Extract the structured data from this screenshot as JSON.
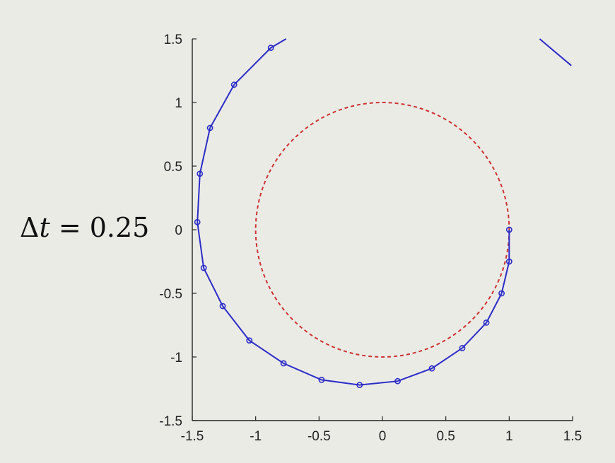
{
  "label": {
    "delta": "Δ",
    "variable": "t",
    "rest": " = 0.25"
  },
  "colors": {
    "background": "#ebebe6",
    "axis": "#222222",
    "trajectory": "#2b2bc8",
    "reference_circle": "#cc3333"
  },
  "chart_data": {
    "type": "line",
    "title": "",
    "xlabel": "",
    "ylabel": "",
    "xlim": [
      -1.5,
      1.5
    ],
    "ylim": [
      -1.5,
      1.5
    ],
    "x_ticks": [
      "-1.5",
      "-1",
      "-0.5",
      "0",
      "0.5",
      "1",
      "1.5"
    ],
    "y_ticks": [
      "1.5",
      "1",
      "0.5",
      "0",
      "-0.5",
      "-1",
      "-1.5"
    ],
    "grid": false,
    "legend": "none",
    "series": [
      {
        "style": "solid line with circle markers",
        "color": "#2b2bc8",
        "x": [
          1.0,
          1.0,
          0.94,
          0.82,
          0.63,
          0.39,
          0.12,
          -0.18,
          -0.48,
          -0.78,
          -1.05,
          -1.26,
          -1.41,
          -1.46,
          -1.44,
          -1.36,
          -1.17,
          -0.88,
          -0.76
        ],
        "y": [
          0.0,
          -0.25,
          -0.5,
          -0.73,
          -0.93,
          -1.09,
          -1.19,
          -1.22,
          -1.18,
          -1.05,
          -0.87,
          -0.6,
          -0.3,
          0.06,
          0.44,
          0.8,
          1.14,
          1.43,
          1.5
        ]
      },
      {
        "style": "solid line segment",
        "color": "#2b2bc8",
        "x": [
          1.24,
          1.49
        ],
        "y": [
          1.5,
          1.29
        ]
      },
      {
        "style": "dashed unit circle",
        "color": "#cc3333",
        "center": [
          0,
          0
        ],
        "radius": 1
      }
    ]
  }
}
